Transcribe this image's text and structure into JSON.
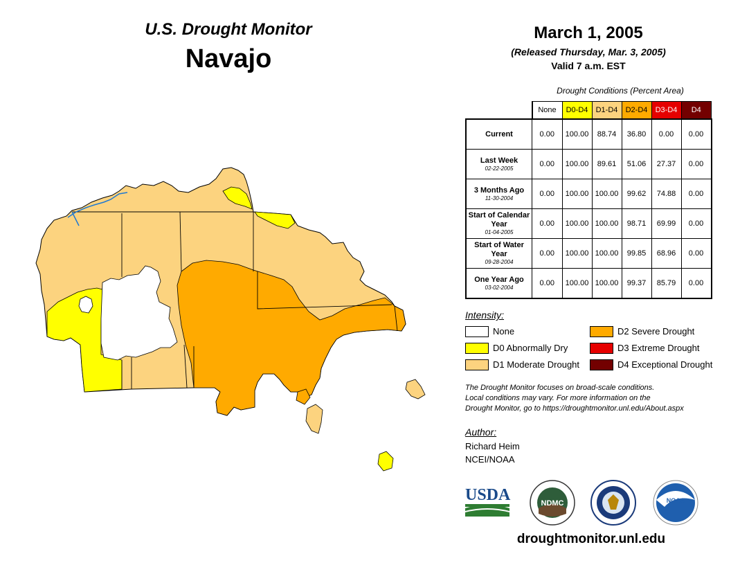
{
  "header": {
    "title": "U.S. Drought Monitor",
    "region": "Navajo",
    "date": "March 1, 2005",
    "released": "(Released Thursday, Mar. 3, 2005)",
    "valid": "Valid 7 a.m. EST"
  },
  "table": {
    "caption": "Drought Conditions (Percent Area)",
    "columns": [
      {
        "label": "None",
        "color": "#ffffff",
        "text_color": "#000000"
      },
      {
        "label": "D0-D4",
        "color": "#ffff00",
        "text_color": "#000000"
      },
      {
        "label": "D1-D4",
        "color": "#fcd37f",
        "text_color": "#000000"
      },
      {
        "label": "D2-D4",
        "color": "#ffaa00",
        "text_color": "#000000"
      },
      {
        "label": "D3-D4",
        "color": "#e60000",
        "text_color": "#ffffff"
      },
      {
        "label": "D4",
        "color": "#730000",
        "text_color": "#ffffff"
      }
    ],
    "rows": [
      {
        "label": "Current",
        "sublabel": "",
        "values": [
          "0.00",
          "100.00",
          "88.74",
          "36.80",
          "0.00",
          "0.00"
        ]
      },
      {
        "label": "Last Week",
        "sublabel": "02-22-2005",
        "values": [
          "0.00",
          "100.00",
          "89.61",
          "51.06",
          "27.37",
          "0.00"
        ]
      },
      {
        "label": "3 Months Ago",
        "sublabel": "11-30-2004",
        "values": [
          "0.00",
          "100.00",
          "100.00",
          "99.62",
          "74.88",
          "0.00"
        ]
      },
      {
        "label": "Start of Calendar Year",
        "sublabel": "01-04-2005",
        "values": [
          "0.00",
          "100.00",
          "100.00",
          "98.71",
          "69.99",
          "0.00"
        ]
      },
      {
        "label": "Start of Water Year",
        "sublabel": "09-28-2004",
        "values": [
          "0.00",
          "100.00",
          "100.00",
          "99.85",
          "68.96",
          "0.00"
        ]
      },
      {
        "label": "One Year Ago",
        "sublabel": "03-02-2004",
        "values": [
          "0.00",
          "100.00",
          "100.00",
          "99.37",
          "85.79",
          "0.00"
        ]
      }
    ]
  },
  "legend": {
    "title": "Intensity:",
    "items": [
      {
        "label": "None",
        "color": "#ffffff"
      },
      {
        "label": "D0 Abnormally Dry",
        "color": "#ffff00"
      },
      {
        "label": "D1 Moderate Drought",
        "color": "#fcd37f"
      },
      {
        "label": "D2 Severe Drought",
        "color": "#ffaa00"
      },
      {
        "label": "D3 Extreme Drought",
        "color": "#e60000"
      },
      {
        "label": "D4 Exceptional Drought",
        "color": "#730000"
      }
    ]
  },
  "note": {
    "line1": "The Drought Monitor focuses on broad-scale conditions.",
    "line2": "Local conditions may vary. For more information on the",
    "line3": "Drought Monitor, go to https://droughtmonitor.unl.edu/About.aspx"
  },
  "author": {
    "title": "Author:",
    "name": "Richard Heim",
    "org": "NCEI/NOAA"
  },
  "logos": {
    "usda": "USDA",
    "ndmc": "NDMC",
    "noaa": "NOAA"
  },
  "footer": {
    "url": "droughtmonitor.unl.edu"
  }
}
